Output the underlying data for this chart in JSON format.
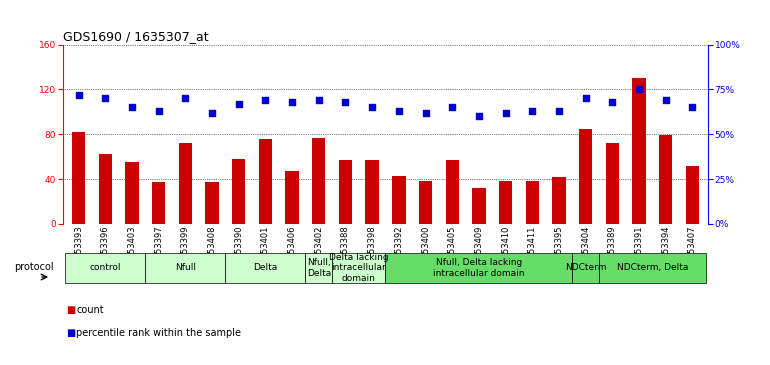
{
  "title": "GDS1690 / 1635307_at",
  "samples": [
    "GSM53393",
    "GSM53396",
    "GSM53403",
    "GSM53397",
    "GSM53399",
    "GSM53408",
    "GSM53390",
    "GSM53401",
    "GSM53406",
    "GSM53402",
    "GSM53388",
    "GSM53398",
    "GSM53392",
    "GSM53400",
    "GSM53405",
    "GSM53409",
    "GSM53410",
    "GSM53411",
    "GSM53395",
    "GSM53404",
    "GSM53389",
    "GSM53391",
    "GSM53394",
    "GSM53407"
  ],
  "counts": [
    82,
    62,
    55,
    37,
    72,
    37,
    58,
    76,
    47,
    77,
    57,
    57,
    43,
    38,
    57,
    32,
    38,
    38,
    42,
    85,
    72,
    130,
    79,
    52
  ],
  "percentiles": [
    72,
    70,
    65,
    63,
    70,
    62,
    67,
    69,
    68,
    69,
    68,
    65,
    63,
    62,
    65,
    60,
    62,
    63,
    63,
    70,
    68,
    75,
    69,
    65
  ],
  "bar_color": "#cc0000",
  "dot_color": "#0000cc",
  "ylim_left": [
    0,
    160
  ],
  "ylim_right": [
    0,
    100
  ],
  "yticks_left": [
    0,
    40,
    80,
    120,
    160
  ],
  "yticks_right": [
    0,
    25,
    50,
    75,
    100
  ],
  "ytick_labels_right": [
    "0%",
    "25%",
    "50%",
    "75%",
    "100%"
  ],
  "protocol_groups": [
    {
      "label": "control",
      "start": 0,
      "end": 2,
      "color": "#ccffcc"
    },
    {
      "label": "Nfull",
      "start": 3,
      "end": 5,
      "color": "#ccffcc"
    },
    {
      "label": "Delta",
      "start": 6,
      "end": 8,
      "color": "#ccffcc"
    },
    {
      "label": "Nfull,\nDelta",
      "start": 9,
      "end": 9,
      "color": "#ccffcc"
    },
    {
      "label": "Delta lacking\nintracellular\ndomain",
      "start": 10,
      "end": 11,
      "color": "#ccffcc"
    },
    {
      "label": "Nfull, Delta lacking\nintracellular domain",
      "start": 12,
      "end": 18,
      "color": "#66dd66"
    },
    {
      "label": "NDCterm",
      "start": 19,
      "end": 19,
      "color": "#66dd66"
    },
    {
      "label": "NDCterm, Delta",
      "start": 20,
      "end": 23,
      "color": "#66dd66"
    }
  ],
  "legend_items": [
    {
      "label": "count",
      "color": "#cc0000"
    },
    {
      "label": "percentile rank within the sample",
      "color": "#0000cc"
    }
  ],
  "background_color": "#ffffff",
  "title_fontsize": 9,
  "tick_fontsize": 6.5,
  "proto_fontsize": 6.5
}
